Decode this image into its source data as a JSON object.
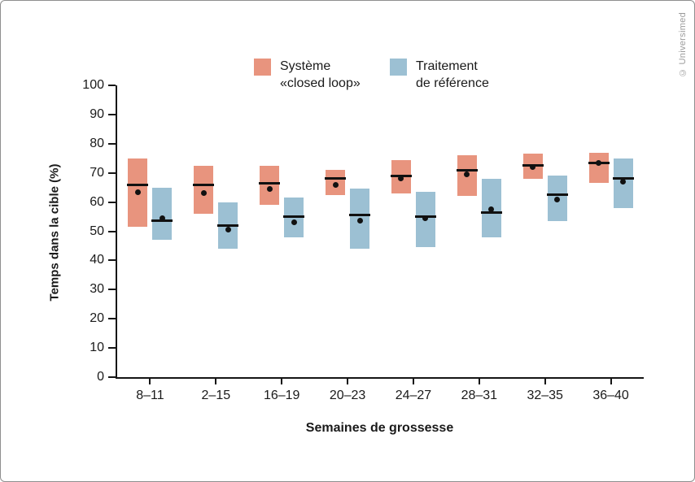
{
  "frame": {
    "copyright": "© Universimed"
  },
  "legend": [
    {
      "key": "closed-loop",
      "color": "#E8947E",
      "lines": [
        "Système",
        "«closed loop»"
      ]
    },
    {
      "key": "reference",
      "color": "#9CC0D3",
      "lines": [
        "Traitement",
        "de référence"
      ]
    }
  ],
  "chart_data": {
    "type": "bar",
    "subtype": "floating-range-bars-with-median-line-and-dot",
    "title": "",
    "xlabel": "Semaines de grossesse",
    "ylabel": "Temps dans la cible (%)",
    "ylim": [
      0,
      100
    ],
    "yticks": [
      0,
      10,
      20,
      30,
      40,
      50,
      60,
      70,
      80,
      90,
      100
    ],
    "grid": false,
    "legend_position": "top",
    "categories": [
      "8–11",
      "2–15",
      "16–19",
      "20–23",
      "24–27",
      "28–31",
      "32–35",
      "36–40"
    ],
    "series": [
      {
        "name": "Système «closed loop»",
        "color": "#E8947E",
        "bars": [
          {
            "low": 51.5,
            "high": 75.0,
            "median": 66.0,
            "dot": 63.5
          },
          {
            "low": 56.0,
            "high": 72.5,
            "median": 66.0,
            "dot": 63.0
          },
          {
            "low": 59.0,
            "high": 72.5,
            "median": 66.5,
            "dot": 64.5
          },
          {
            "low": 62.5,
            "high": 71.0,
            "median": 68.0,
            "dot": 66.0
          },
          {
            "low": 63.0,
            "high": 74.5,
            "median": 69.0,
            "dot": 68.0
          },
          {
            "low": 62.0,
            "high": 76.0,
            "median": 71.0,
            "dot": 69.5
          },
          {
            "low": 68.0,
            "high": 76.5,
            "median": 72.5,
            "dot": 72.0
          },
          {
            "low": 66.5,
            "high": 77.0,
            "median": 73.5,
            "dot": 73.5
          }
        ]
      },
      {
        "name": "Traitement de référence",
        "color": "#9CC0D3",
        "bars": [
          {
            "low": 47.0,
            "high": 65.0,
            "median": 53.5,
            "dot": 54.5
          },
          {
            "low": 44.0,
            "high": 60.0,
            "median": 52.0,
            "dot": 50.5
          },
          {
            "low": 48.0,
            "high": 61.5,
            "median": 55.0,
            "dot": 53.0
          },
          {
            "low": 44.0,
            "high": 64.5,
            "median": 55.5,
            "dot": 53.5
          },
          {
            "low": 44.5,
            "high": 63.5,
            "median": 55.0,
            "dot": 54.5
          },
          {
            "low": 48.0,
            "high": 68.0,
            "median": 56.5,
            "dot": 57.5
          },
          {
            "low": 53.5,
            "high": 69.0,
            "median": 62.5,
            "dot": 61.0
          },
          {
            "low": 58.0,
            "high": 75.0,
            "median": 68.0,
            "dot": 67.0
          }
        ]
      }
    ]
  }
}
